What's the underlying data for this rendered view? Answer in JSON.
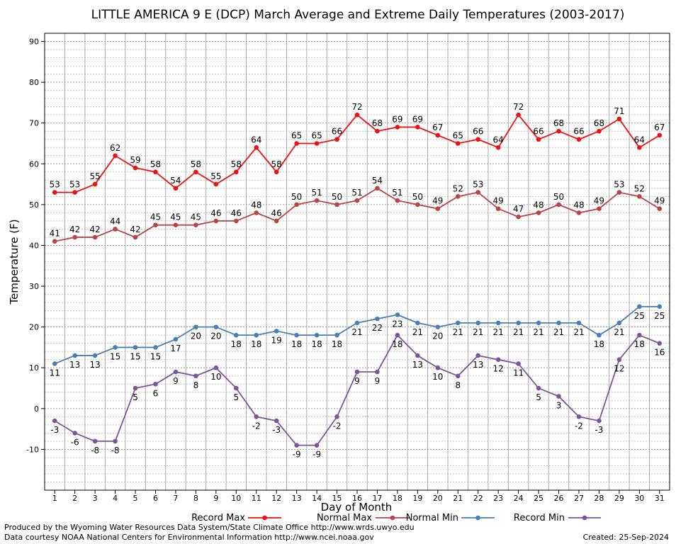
{
  "chart_data": {
    "type": "line",
    "title": "LITTLE AMERICA 9 E (DCP) March Average and Extreme Daily Temperatures (2003-2017)",
    "xlabel": "Day of Month",
    "ylabel": "Temperature (F)",
    "ylim": [
      -20,
      92
    ],
    "yticks": [
      -10,
      0,
      10,
      20,
      30,
      40,
      50,
      60,
      70,
      80,
      90
    ],
    "x": [
      1,
      2,
      3,
      4,
      5,
      6,
      7,
      8,
      9,
      10,
      11,
      12,
      13,
      14,
      15,
      16,
      17,
      18,
      19,
      20,
      21,
      22,
      23,
      24,
      25,
      26,
      27,
      28,
      29,
      30,
      31
    ],
    "grid": true,
    "legend_position": "bottom",
    "series": [
      {
        "name": "Record Max",
        "color": "#ee1111",
        "values": [
          53,
          53,
          55,
          62,
          59,
          58,
          54,
          58,
          55,
          58,
          64,
          58,
          65,
          65,
          66,
          72,
          68,
          69,
          69,
          67,
          65,
          66,
          64,
          72,
          66,
          68,
          66,
          68,
          71,
          64,
          67
        ]
      },
      {
        "name": "Normal Max",
        "color": "#b84444",
        "values": [
          41,
          42,
          42,
          44,
          42,
          45,
          45,
          45,
          46,
          46,
          48,
          46,
          50,
          51,
          50,
          51,
          54,
          51,
          50,
          49,
          52,
          53,
          49,
          47,
          48,
          50,
          48,
          49,
          53,
          52,
          49
        ]
      },
      {
        "name": "Normal Min",
        "color": "#4a7fb5",
        "values": [
          11,
          13,
          13,
          15,
          15,
          15,
          17,
          20,
          20,
          18,
          18,
          19,
          18,
          18,
          18,
          21,
          22,
          23,
          21,
          20,
          21,
          21,
          21,
          21,
          21,
          21,
          21,
          18,
          21,
          25,
          25
        ]
      },
      {
        "name": "Record Min",
        "color": "#7b559a",
        "values": [
          -3,
          -6,
          -8,
          -8,
          5,
          6,
          9,
          8,
          10,
          5,
          -2,
          -3,
          -9,
          -9,
          -2,
          9,
          9,
          18,
          13,
          10,
          8,
          13,
          12,
          11,
          5,
          3,
          -2,
          -3,
          12,
          18,
          16
        ]
      }
    ]
  },
  "footer": {
    "produced_by": "Produced by the Wyoming Water Resources Data System/State Climate Office http://www.wrds.uwyo.edu",
    "data_courtesy": "Data courtesy NOAA National Centers for Environmental Information http://www.ncei.noaa.gov",
    "created": "Created:  25-Sep-2024"
  }
}
